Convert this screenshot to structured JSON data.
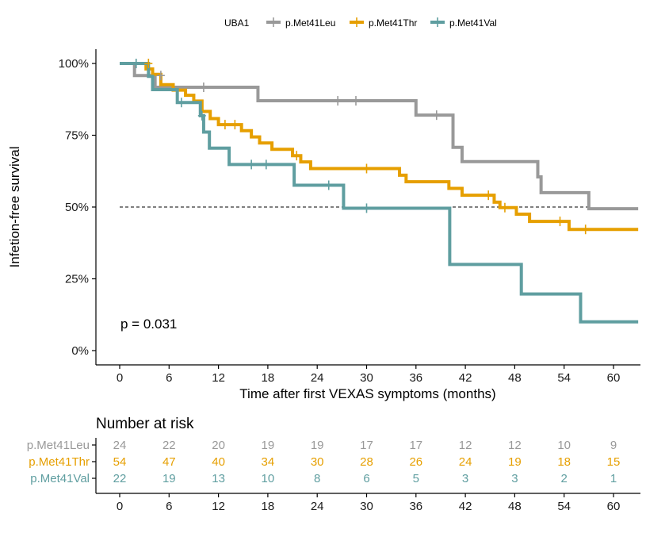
{
  "chart_data": {
    "type": "line",
    "subtype": "kaplan-meier step",
    "title": "",
    "xlabel": "Time after first VEXAS symptoms (months)",
    "ylabel": "Infetion-free survival",
    "xlim": [
      -3,
      63
    ],
    "ylim": [
      -3.5,
      104
    ],
    "x_ticks": [
      0,
      6,
      12,
      18,
      24,
      30,
      36,
      42,
      48,
      54,
      60
    ],
    "y_ticks": [
      0,
      25,
      50,
      75,
      100
    ],
    "y_tick_labels": [
      "0%",
      "25%",
      "50%",
      "75%",
      "100%"
    ],
    "grid": false,
    "median_reference_line": 50,
    "annotation": "p = 0.031",
    "legend": {
      "title": "UBA1",
      "placement": "top",
      "entries": [
        "p.Met41Leu",
        "p.Met41Thr",
        "p.Met41Val"
      ]
    },
    "series": [
      {
        "name": "p.Met41Leu",
        "color": "#999999",
        "steps": [
          [
            0,
            100
          ],
          [
            1.8,
            95.8
          ],
          [
            4.3,
            91.7
          ],
          [
            16.8,
            87.0
          ],
          [
            36.0,
            82.0
          ],
          [
            40.5,
            70.8
          ],
          [
            41.6,
            65.8
          ],
          [
            50.8,
            60.5
          ],
          [
            51.2,
            55.0
          ],
          [
            57.0,
            49.4
          ],
          [
            63,
            49.4
          ]
        ],
        "censored": [
          [
            2.0,
            100
          ],
          [
            5.0,
            95.8
          ],
          [
            10.2,
            91.7
          ],
          [
            26.5,
            87.0
          ],
          [
            28.7,
            87.0
          ],
          [
            38.5,
            82.0
          ]
        ]
      },
      {
        "name": "p.Met41Thr",
        "color": "#E69F00",
        "steps": [
          [
            0,
            100
          ],
          [
            3.2,
            98.1
          ],
          [
            4.0,
            96.2
          ],
          [
            5.0,
            92.6
          ],
          [
            6.5,
            90.7
          ],
          [
            8.0,
            88.9
          ],
          [
            9.0,
            86.9
          ],
          [
            10.0,
            83.3
          ],
          [
            11.0,
            80.8
          ],
          [
            12.0,
            78.7
          ],
          [
            14.8,
            76.6
          ],
          [
            16.0,
            74.4
          ],
          [
            17.0,
            72.3
          ],
          [
            18.5,
            70.1
          ],
          [
            21.0,
            67.9
          ],
          [
            22.0,
            65.7
          ],
          [
            23.2,
            63.4
          ],
          [
            34.0,
            61.1
          ],
          [
            34.8,
            58.8
          ],
          [
            40.0,
            56.5
          ],
          [
            41.6,
            54.1
          ],
          [
            45.5,
            51.7
          ],
          [
            46.2,
            49.8
          ],
          [
            48.2,
            47.5
          ],
          [
            49.8,
            45.0
          ],
          [
            54.6,
            42.2
          ],
          [
            63,
            42.2
          ]
        ],
        "censored": [
          [
            3.5,
            100
          ],
          [
            12.8,
            78.7
          ],
          [
            14.0,
            78.7
          ],
          [
            21.5,
            67.9
          ],
          [
            30.0,
            63.4
          ],
          [
            44.8,
            54.1
          ],
          [
            46.8,
            49.8
          ],
          [
            53.5,
            45.0
          ],
          [
            56.6,
            42.2
          ]
        ]
      },
      {
        "name": "p.Met41Val",
        "color": "#5F9EA0",
        "steps": [
          [
            0,
            100
          ],
          [
            3.5,
            95.5
          ],
          [
            4.0,
            90.9
          ],
          [
            7.0,
            86.4
          ],
          [
            9.8,
            81.8
          ],
          [
            10.2,
            76.1
          ],
          [
            10.9,
            70.5
          ],
          [
            13.3,
            64.8
          ],
          [
            21.2,
            57.6
          ],
          [
            27.2,
            49.6
          ],
          [
            40.1,
            30.0
          ],
          [
            48.8,
            19.7
          ],
          [
            56.0,
            10.0
          ],
          [
            63,
            10.0
          ]
        ],
        "censored": [
          [
            2.0,
            100
          ],
          [
            7.5,
            86.4
          ],
          [
            10.0,
            81.8
          ],
          [
            16.0,
            64.8
          ],
          [
            17.8,
            64.8
          ],
          [
            25.4,
            57.6
          ],
          [
            30.0,
            49.6
          ]
        ]
      }
    ],
    "risk_table": {
      "title": "Number at risk",
      "times": [
        0,
        6,
        12,
        18,
        24,
        30,
        36,
        42,
        48,
        54,
        60
      ],
      "rows": [
        {
          "name": "p.Met41Leu",
          "color": "#999999",
          "values": [
            24,
            22,
            20,
            19,
            19,
            17,
            17,
            12,
            12,
            10,
            9
          ]
        },
        {
          "name": "p.Met41Thr",
          "color": "#E69F00",
          "values": [
            54,
            47,
            40,
            34,
            30,
            28,
            26,
            24,
            19,
            18,
            15
          ]
        },
        {
          "name": "p.Met41Val",
          "color": "#5F9EA0",
          "values": [
            22,
            19,
            13,
            10,
            8,
            6,
            5,
            3,
            3,
            2,
            1
          ]
        }
      ]
    }
  }
}
